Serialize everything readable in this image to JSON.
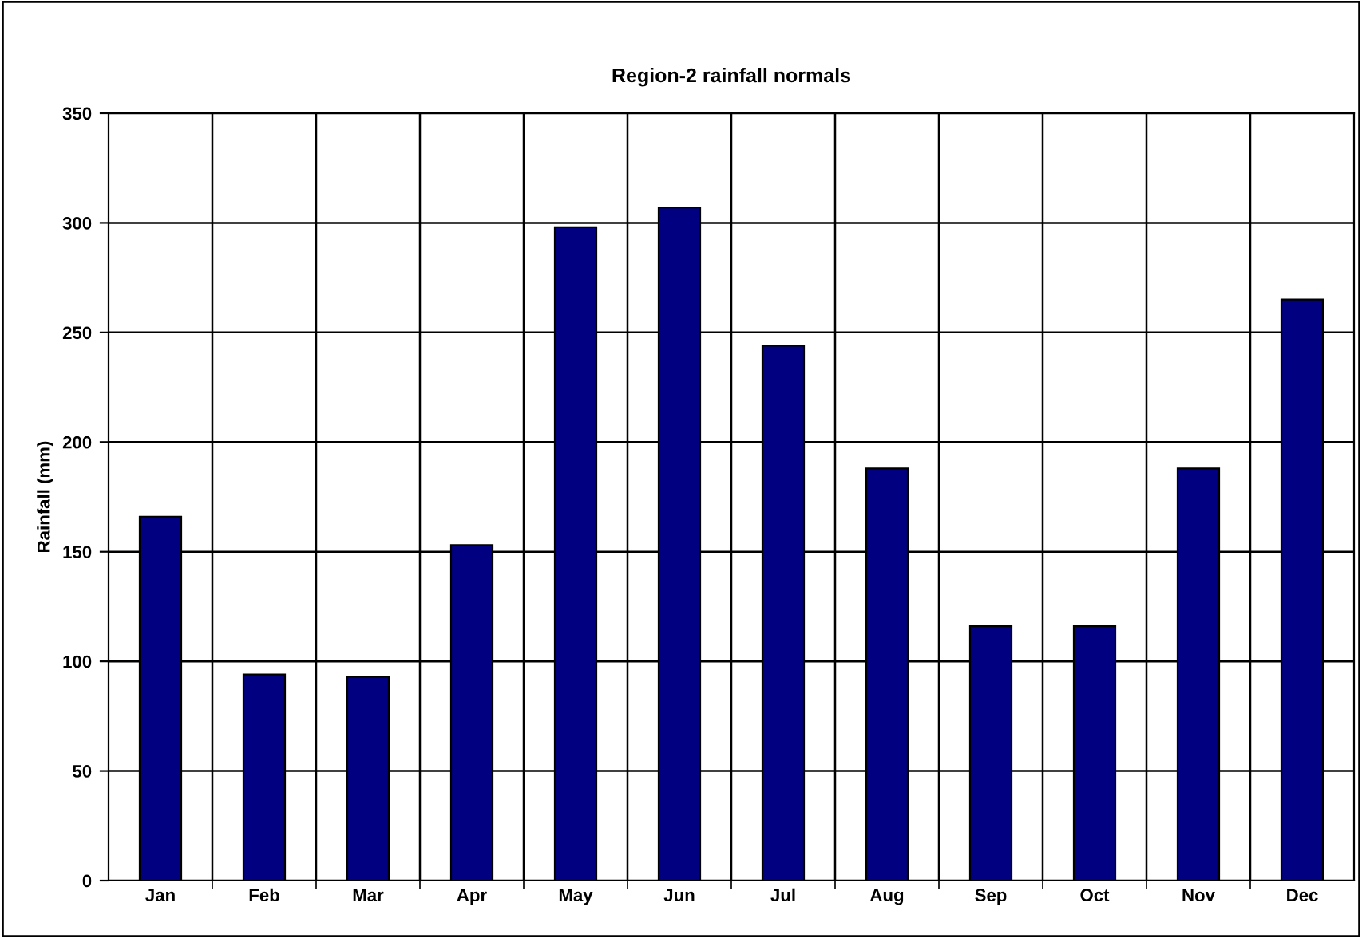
{
  "chart_data": {
    "type": "bar",
    "title": "Region-2 rainfall normals",
    "ylabel": "Rainfall (mm)",
    "categories": [
      "Jan",
      "Feb",
      "Mar",
      "Apr",
      "May",
      "Jun",
      "Jul",
      "Aug",
      "Sep",
      "Oct",
      "Nov",
      "Dec"
    ],
    "values": [
      166,
      94,
      93,
      153,
      298,
      307,
      244,
      188,
      116,
      116,
      188,
      265
    ],
    "color": "#000080",
    "ylim": [
      0,
      350
    ],
    "yticks": [
      0,
      50,
      100,
      150,
      200,
      250,
      300,
      350
    ],
    "grid": true,
    "legend": false
  }
}
